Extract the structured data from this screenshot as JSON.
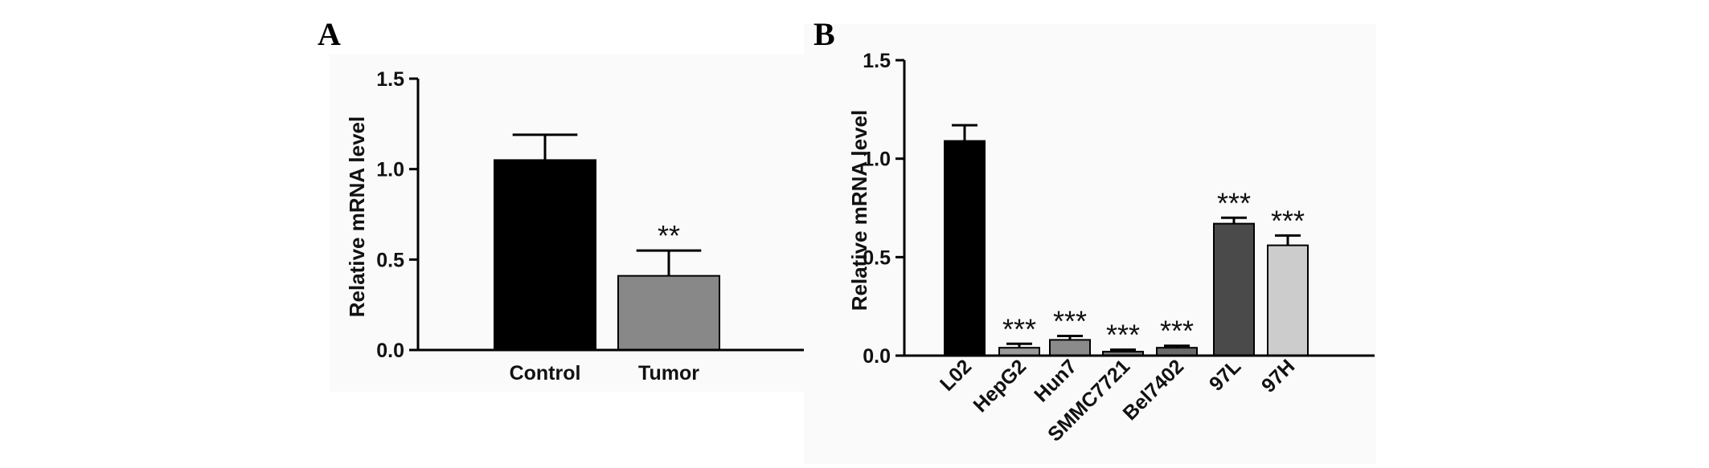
{
  "chart_data": [
    {
      "panel": "A",
      "type": "bar",
      "categories": [
        "Control",
        "Tumor"
      ],
      "values": [
        1.05,
        0.41
      ],
      "errors": [
        0.14,
        0.14
      ],
      "significance": [
        "",
        "**"
      ],
      "colors": [
        "#000000",
        "#888888"
      ],
      "ylabel": "Relative mRNA level",
      "ylim": [
        0,
        1.5
      ],
      "yticks": [
        "0.0",
        "0.5",
        "1.0",
        "1.5"
      ],
      "grid": false,
      "legend": "none"
    },
    {
      "panel": "B",
      "type": "bar",
      "categories": [
        "L02",
        "HepG2",
        "Hun7",
        "SMMC7721",
        "Bel7402",
        "97L",
        "97H"
      ],
      "values": [
        1.09,
        0.04,
        0.08,
        0.02,
        0.04,
        0.67,
        0.56
      ],
      "errors": [
        0.08,
        0.02,
        0.02,
        0.01,
        0.01,
        0.03,
        0.05
      ],
      "significance": [
        "",
        "***",
        "***",
        "***",
        "***",
        "***",
        "***"
      ],
      "colors": [
        "#000000",
        "#9a9a9a",
        "#8a8a8a",
        "#7a7a7a",
        "#6a6a6a",
        "#4a4a4a",
        "#cccccc"
      ],
      "ylabel": "Relative mRNA level",
      "ylim": [
        0,
        1.5
      ],
      "yticks": [
        "0.0",
        "0.5",
        "1.0",
        "1.5"
      ],
      "grid": false,
      "legend": "none"
    }
  ]
}
